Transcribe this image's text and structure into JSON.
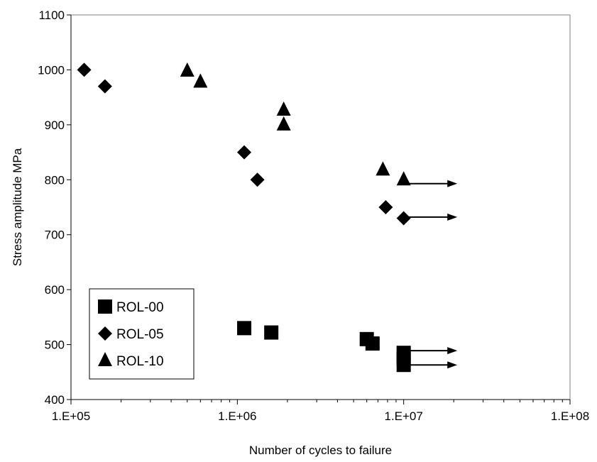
{
  "chart_data": {
    "type": "scatter",
    "title": "",
    "xlabel": "Number of cycles to failure",
    "ylabel": "Stress amplitude MPa",
    "xscale": "log",
    "xlim": [
      100000,
      100000000
    ],
    "ylim": [
      400,
      1100
    ],
    "x_ticks": [
      100000,
      1000000,
      10000000,
      100000000
    ],
    "x_tick_labels": [
      "1.E+05",
      "1.E+06",
      "1.E+07",
      "1.E+08"
    ],
    "y_ticks": [
      400,
      500,
      600,
      700,
      800,
      900,
      1000,
      1100
    ],
    "y_tick_labels": [
      "400",
      "500",
      "600",
      "700",
      "800",
      "900",
      "1000",
      "1100"
    ],
    "grid": false,
    "legend_position": "bottom-left",
    "marker_color": "#000000",
    "series": [
      {
        "name": "ROL-00",
        "marker": "square",
        "points": [
          {
            "x": 1100000,
            "y": 530
          },
          {
            "x": 1600000,
            "y": 522
          },
          {
            "x": 6000000,
            "y": 510
          },
          {
            "x": 6500000,
            "y": 502
          },
          {
            "x": 10000000,
            "y": 485
          },
          {
            "x": 10000000,
            "y": 475
          },
          {
            "x": 10000000,
            "y": 463
          }
        ]
      },
      {
        "name": "ROL-05",
        "marker": "diamond",
        "points": [
          {
            "x": 120000,
            "y": 1000
          },
          {
            "x": 160000,
            "y": 970
          },
          {
            "x": 1100000,
            "y": 850
          },
          {
            "x": 1320000,
            "y": 800
          },
          {
            "x": 7800000,
            "y": 750
          },
          {
            "x": 10000000,
            "y": 730
          }
        ]
      },
      {
        "name": "ROL-10",
        "marker": "triangle",
        "points": [
          {
            "x": 500000,
            "y": 998
          },
          {
            "x": 600000,
            "y": 978
          },
          {
            "x": 1900000,
            "y": 927
          },
          {
            "x": 1900000,
            "y": 900
          },
          {
            "x": 7500000,
            "y": 818
          },
          {
            "x": 10000000,
            "y": 800
          }
        ]
      }
    ],
    "runouts": [
      {
        "series": "ROL-10",
        "x_from": 10000000,
        "x_to": 21000000,
        "y": 793
      },
      {
        "series": "ROL-05",
        "x_from": 10000000,
        "x_to": 21000000,
        "y": 732
      },
      {
        "series": "ROL-00",
        "x_from": 10000000,
        "x_to": 21000000,
        "y": 489
      },
      {
        "series": "ROL-00",
        "x_from": 10000000,
        "x_to": 21000000,
        "y": 463
      }
    ]
  }
}
